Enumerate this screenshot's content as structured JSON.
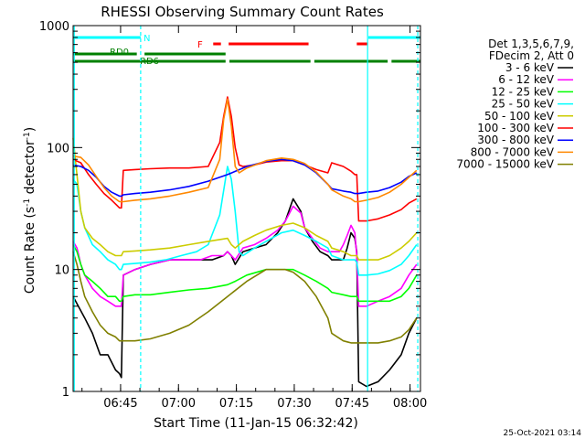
{
  "chart_data": {
    "type": "line",
    "title": "RHESSI Observing Summary Count Rates",
    "xlabel": "Start Time (11-Jan-15 06:32:42)",
    "ylabel_main": "Count Rate (s",
    "ylabel_sup1": "-1",
    "ylabel_mid": " detector",
    "ylabel_sup2": "-1",
    "ylabel_end": ")",
    "yscale": "log",
    "ylim": [
      1,
      1000
    ],
    "xlim_minutes": [
      0,
      90
    ],
    "x_ticks": [
      {
        "label": "06:45",
        "minute": 12.3
      },
      {
        "label": "07:00",
        "minute": 27.3
      },
      {
        "label": "07:15",
        "minute": 42.3
      },
      {
        "label": "07:30",
        "minute": 57.3
      },
      {
        "label": "07:45",
        "minute": 72.3
      },
      {
        "label": "08:00",
        "minute": 87.3
      }
    ],
    "y_ticks": [
      {
        "label": "1",
        "value": 1
      },
      {
        "label": "10",
        "value": 10
      },
      {
        "label": "100",
        "value": 100
      },
      {
        "label": "1000",
        "value": 1000
      }
    ],
    "legend": {
      "placement": "right",
      "header": [
        "Det 1,3,5,6,7,9,",
        "FDecim 2, Att 0"
      ],
      "entries": [
        {
          "label": "3 - 6 keV",
          "color": "#000000"
        },
        {
          "label": "6 - 12 keV",
          "color": "#ff00ff"
        },
        {
          "label": "12 - 25 keV",
          "color": "#00ff00"
        },
        {
          "label": "25 - 50 keV",
          "color": "#00ffff"
        },
        {
          "label": "50 - 100 keV",
          "color": "#cccc00"
        },
        {
          "label": "100 - 300 keV",
          "color": "#ff0000"
        },
        {
          "label": "300 - 800 keV",
          "color": "#0000ff"
        },
        {
          "label": "800 - 7000 keV",
          "color": "#ff8800"
        },
        {
          "label": "7000 - 15000 keV",
          "color": "#808000"
        }
      ]
    },
    "series": [
      {
        "name": "3 - 6 keV",
        "color": "#000000",
        "x": [
          0,
          3,
          5,
          7,
          9,
          11,
          12,
          12.5,
          13,
          16,
          20,
          25,
          30,
          33,
          36,
          39,
          40,
          41,
          42,
          44,
          47,
          50,
          53,
          55,
          57,
          59,
          60,
          62,
          64,
          66,
          67,
          68,
          69,
          70,
          71,
          72,
          73,
          73.5,
          74,
          76,
          79,
          82,
          85,
          87,
          89
        ],
        "y": [
          6,
          4,
          3,
          2,
          2,
          1.5,
          1.4,
          1.3,
          9,
          10,
          11,
          12,
          12,
          12,
          12,
          13,
          14,
          13,
          11,
          14,
          15,
          16,
          20,
          25,
          38,
          30,
          22,
          17,
          14,
          13,
          12,
          12,
          12,
          12,
          15,
          20,
          18,
          14,
          1.2,
          1.1,
          1.2,
          1.5,
          2,
          3,
          4
        ]
      },
      {
        "name": "6 - 12 keV",
        "color": "#ff00ff",
        "x": [
          0,
          1,
          2,
          3,
          5,
          7,
          9,
          11,
          12,
          12.5,
          13,
          16,
          20,
          25,
          30,
          33,
          36,
          39,
          40,
          41,
          42,
          44,
          47,
          50,
          53,
          55,
          57,
          59,
          60,
          62,
          64,
          66,
          67,
          69,
          70,
          71,
          72,
          73,
          73.5,
          74,
          76,
          79,
          82,
          85,
          87,
          89
        ],
        "y": [
          17,
          15,
          11,
          9,
          7,
          6,
          5.5,
          5,
          5,
          5,
          9,
          10,
          11,
          12,
          12,
          12,
          13,
          13,
          14,
          13,
          12,
          15,
          16,
          18,
          21,
          25,
          33,
          29,
          22,
          18,
          15,
          14,
          14,
          14,
          16,
          19,
          23,
          20,
          13,
          5,
          5,
          5.5,
          6,
          7,
          9,
          11
        ]
      },
      {
        "name": "12 - 25 keV",
        "color": "#00ff00",
        "x": [
          0,
          1,
          2,
          3,
          5,
          7,
          9,
          11,
          12,
          12.5,
          13,
          16,
          20,
          25,
          30,
          35,
          40,
          42,
          45,
          50,
          55,
          57,
          60,
          63,
          66,
          67,
          70,
          72,
          73,
          73.5,
          74,
          76,
          79,
          82,
          85,
          87,
          89
        ],
        "y": [
          16,
          14,
          11,
          9,
          8,
          7,
          6,
          6,
          5.5,
          5.5,
          6,
          6.2,
          6.2,
          6.5,
          6.8,
          7,
          7.5,
          8,
          9,
          10,
          10,
          10,
          9,
          8,
          7,
          6.5,
          6.2,
          6,
          6,
          6,
          5.5,
          5.5,
          5.5,
          5.5,
          6,
          7,
          9
        ]
      },
      {
        "name": "25 - 50 keV",
        "color": "#00ffff",
        "x": [
          0,
          1,
          2,
          3,
          5,
          7,
          9,
          11,
          12,
          12.5,
          13,
          16,
          20,
          24,
          28,
          32,
          35,
          38,
          40,
          41,
          42,
          43,
          44,
          47,
          50,
          54,
          57,
          60,
          63,
          66,
          67,
          70,
          72,
          73,
          73.5,
          74,
          76,
          79,
          82,
          85,
          87,
          89
        ],
        "y": [
          55,
          50,
          30,
          22,
          16,
          14,
          12,
          11,
          10,
          10,
          11,
          11.2,
          11.5,
          12,
          13,
          14,
          16,
          28,
          70,
          55,
          30,
          14,
          13,
          15,
          17,
          20,
          21,
          19,
          17,
          15,
          13,
          12,
          12,
          12,
          11.5,
          9,
          9,
          9.2,
          9.8,
          11,
          13,
          16
        ]
      },
      {
        "name": "50 - 100 keV",
        "color": "#cccc00",
        "x": [
          0,
          1,
          2,
          3,
          5,
          7,
          9,
          11,
          12,
          12.5,
          13,
          16,
          20,
          25,
          30,
          35,
          40,
          41,
          42,
          44,
          47,
          50,
          54,
          57,
          60,
          63,
          66,
          67,
          70,
          72,
          73,
          73.5,
          74,
          76,
          79,
          82,
          85,
          87,
          89
        ],
        "y": [
          120,
          60,
          30,
          22,
          18,
          16,
          14,
          13,
          13,
          13,
          14,
          14.2,
          14.5,
          15,
          16,
          17,
          18,
          16,
          15,
          17,
          19,
          21,
          23,
          24,
          22,
          19,
          17,
          15,
          14,
          13,
          13,
          13,
          12,
          12,
          12,
          13,
          15,
          17,
          20
        ]
      },
      {
        "name": "100 - 300 keV",
        "color": "#ff0000",
        "x": [
          0,
          2,
          4,
          6,
          8,
          10,
          12,
          12.5,
          13,
          16,
          20,
          25,
          30,
          35,
          38,
          39,
          40,
          41,
          42,
          43,
          44,
          47,
          50,
          54,
          57,
          60,
          63,
          66,
          67,
          70,
          72,
          73,
          73.5,
          74,
          76,
          79,
          82,
          85,
          87,
          89
        ],
        "y": [
          80,
          75,
          60,
          50,
          42,
          37,
          32,
          32,
          65,
          66,
          67,
          68,
          68,
          70,
          110,
          180,
          260,
          180,
          100,
          72,
          70,
          72,
          76,
          78,
          78,
          72,
          66,
          62,
          75,
          70,
          64,
          60,
          60,
          25,
          25,
          26,
          28,
          31,
          35,
          38
        ]
      },
      {
        "name": "300 - 800 keV",
        "color": "#0000ff",
        "x": [
          0,
          2,
          4,
          6,
          8,
          10,
          12,
          12.5,
          13,
          16,
          20,
          25,
          30,
          35,
          40,
          45,
          50,
          54,
          57,
          60,
          63,
          66,
          67,
          70,
          72,
          73,
          73.5,
          74,
          76,
          79,
          82,
          85,
          87,
          89
        ],
        "y": [
          72,
          70,
          65,
          57,
          48,
          43,
          40,
          40,
          41,
          42,
          43,
          45,
          48,
          53,
          60,
          70,
          77,
          80,
          78,
          72,
          62,
          50,
          46,
          44,
          43,
          42,
          42,
          42,
          43,
          44,
          47,
          52,
          58,
          62
        ]
      },
      {
        "name": "800 - 7000 keV",
        "color": "#ff8800",
        "x": [
          0,
          2,
          4,
          6,
          8,
          10,
          12,
          13,
          16,
          20,
          25,
          30,
          35,
          38,
          39,
          40,
          41,
          42,
          43,
          45,
          50,
          54,
          57,
          60,
          63,
          66,
          67,
          70,
          72,
          73,
          74,
          76,
          79,
          82,
          85,
          87,
          89
        ],
        "y": [
          85,
          83,
          72,
          58,
          47,
          40,
          36,
          36,
          37,
          38,
          40,
          43,
          47,
          80,
          170,
          250,
          150,
          70,
          62,
          68,
          78,
          82,
          80,
          74,
          63,
          50,
          45,
          40,
          38,
          36,
          36,
          37,
          39,
          43,
          50,
          57,
          65
        ]
      },
      {
        "name": "7000 - 15000 keV",
        "color": "#808000",
        "x": [
          0,
          1,
          2,
          3,
          5,
          7,
          9,
          11,
          12,
          13,
          16,
          20,
          25,
          30,
          35,
          40,
          45,
          50,
          55,
          57,
          60,
          63,
          66,
          67,
          70,
          72,
          73,
          74,
          76,
          79,
          82,
          85,
          87,
          89
        ],
        "y": [
          14,
          11,
          8,
          6,
          4.5,
          3.5,
          3,
          2.8,
          2.6,
          2.6,
          2.6,
          2.7,
          3,
          3.5,
          4.5,
          6,
          8,
          10,
          10,
          9.5,
          8,
          6,
          4,
          3,
          2.6,
          2.5,
          2.5,
          2.5,
          2.5,
          2.5,
          2.6,
          2.8,
          3.2,
          4
        ]
      }
    ],
    "flags": {
      "N": {
        "label": "N",
        "color": "#00ffff",
        "intervals": [
          [
            0,
            17.5
          ],
          [
            76.5,
            90
          ]
        ]
      },
      "RD0": {
        "label": "RD0",
        "color": "#008000",
        "intervals": [
          [
            0,
            16.5
          ],
          [
            18.5,
            39.5
          ]
        ]
      },
      "RD6": {
        "label": "RD6",
        "color": "#008000",
        "intervals": [
          [
            0,
            39.5
          ],
          [
            40.5,
            61.5
          ],
          [
            62.5,
            81.5
          ],
          [
            82.5,
            90
          ]
        ]
      },
      "F": {
        "label": "F",
        "color": "#ff0000",
        "intervals": [
          [
            36.3,
            38.3
          ],
          [
            40.3,
            61
          ],
          [
            73.5,
            76.3
          ]
        ]
      }
    },
    "saa_lines": [
      {
        "minute": 0.3,
        "color": "#00ffff",
        "style": "solid"
      },
      {
        "minute": 17.5,
        "color": "#00ffff",
        "style": "dashed"
      },
      {
        "minute": 76.3,
        "color": "#00ffff",
        "style": "solid"
      },
      {
        "minute": 89.3,
        "color": "#00ffff",
        "style": "dashed"
      }
    ]
  },
  "footer": {
    "timestamp": "25-Oct-2021 03:14"
  }
}
